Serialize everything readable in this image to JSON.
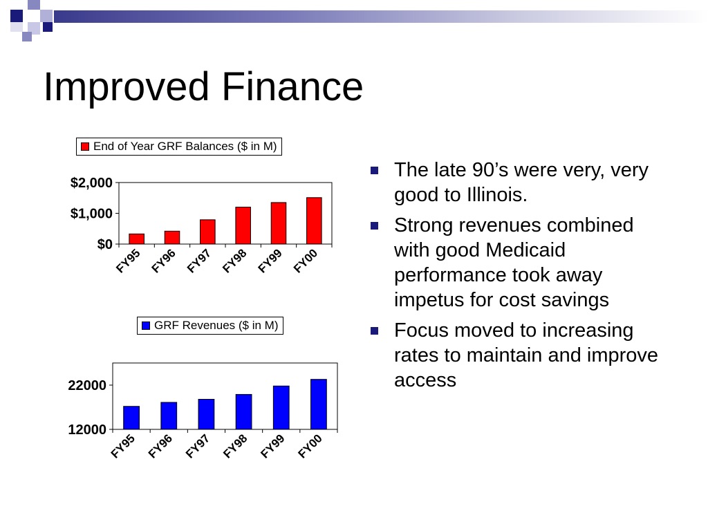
{
  "slide": {
    "title": "Improved Finance",
    "bullets": [
      "The late 90’s were very, very good to Illinois.",
      "Strong revenues combined with good Medicaid performance took away impetus for cost savings",
      "Focus moved to increasing rates to maintain and improve access"
    ]
  },
  "colors": {
    "accent_dark": "#1a1a7a",
    "balances_bar": "#ff0000",
    "revenues_bar": "#0000ff"
  },
  "chart_data": [
    {
      "type": "bar",
      "legend": "End of Year GRF Balances  ($ in M)",
      "categories": [
        "FY95",
        "FY96",
        "FY97",
        "FY98",
        "FY99",
        "FY00"
      ],
      "values": [
        330,
        420,
        790,
        1200,
        1350,
        1510
      ],
      "ylim": [
        0,
        2000
      ],
      "yticks": [
        0,
        1000,
        2000
      ],
      "ytick_labels": [
        "$0",
        "$1,000",
        "$2,000"
      ],
      "grid": false,
      "legend_position": "top"
    },
    {
      "type": "bar",
      "legend": "GRF Revenues ($ in M)",
      "categories": [
        "FY95",
        "FY96",
        "FY97",
        "FY98",
        "FY99",
        "FY00"
      ],
      "values": [
        17200,
        18100,
        18800,
        19900,
        21800,
        23300
      ],
      "ylim": [
        12000,
        27000
      ],
      "yticks": [
        12000,
        22000
      ],
      "ytick_labels": [
        "12000",
        "22000"
      ],
      "grid": false,
      "legend_position": "top"
    }
  ]
}
